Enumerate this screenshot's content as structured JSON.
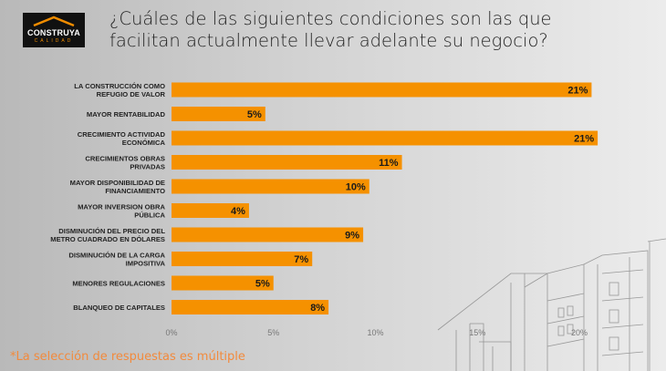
{
  "logo": {
    "brand": "CONSTRUYA",
    "sub": "CALIDAD"
  },
  "note": "*La selección de respuestas es múltiple",
  "chart_data": {
    "type": "bar",
    "orientation": "horizontal",
    "title": "¿Cuáles de las siguientes condiciones son las que facilitan actualmente llevar adelante su negocio?",
    "categories": [
      [
        "LA CONSTRUCCIÓN COMO",
        "REFUGIO DE VALOR"
      ],
      [
        "MAYOR RENTABILIDAD"
      ],
      [
        "CRECIMIENTO ACTIVIDAD",
        "ECONÓMICA"
      ],
      [
        "CRECIMIENTOS OBRAS",
        "PRIVADAS"
      ],
      [
        "MAYOR DISPONIBILIDAD DE",
        "FINANCIAMIENTO"
      ],
      [
        "MAYOR INVERSION OBRA",
        "PÚBLICA"
      ],
      [
        "DISMINUCIÓN DEL PRECIO DEL",
        "METRO CUADRADO EN DÓLARES"
      ],
      [
        "DISMINUCIÓN DE LA CARGA",
        "IMPOSITIVA"
      ],
      [
        "MENORES REGULACIONES"
      ],
      [
        "BLANQUEO DE CAPITALES"
      ]
    ],
    "values": [
      20.6,
      4.6,
      20.9,
      11.3,
      9.7,
      3.8,
      9.4,
      6.9,
      5.0,
      7.7
    ],
    "data_labels": [
      "21%",
      "5%",
      "21%",
      "11%",
      "10%",
      "4%",
      "9%",
      "7%",
      "5%",
      "8%"
    ],
    "xticks": [
      "0%",
      "5%",
      "10%",
      "15%",
      "20%"
    ],
    "xtick_values": [
      0,
      5,
      10,
      15,
      20
    ],
    "xlim": [
      0,
      20
    ],
    "grid": false,
    "bar_color": "#f59100"
  }
}
